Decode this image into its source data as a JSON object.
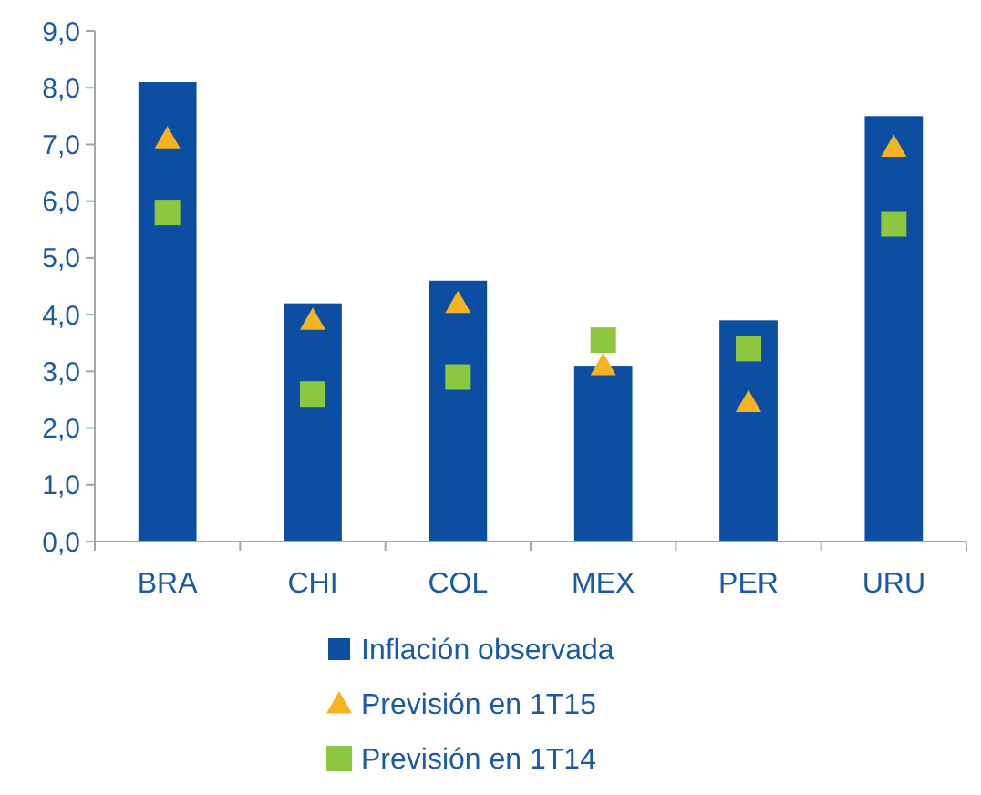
{
  "chart_data": {
    "type": "bar",
    "categories": [
      "BRA",
      "CHI",
      "COL",
      "MEX",
      "PER",
      "URU"
    ],
    "series": [
      {
        "name": "Inflación observada",
        "color": "#0b4ea2",
        "values": [
          8.1,
          4.2,
          4.6,
          3.1,
          3.9,
          7.5
        ]
      },
      {
        "name": "Previsión en 1T15",
        "type": "scatter",
        "marker": "triangle",
        "color": "#f5b324",
        "values": [
          7.1,
          3.9,
          4.2,
          3.1,
          2.45,
          6.95
        ]
      },
      {
        "name": "Previsión en 1T14",
        "type": "scatter",
        "marker": "square",
        "color": "#8dc63f",
        "values": [
          5.8,
          2.6,
          2.9,
          3.55,
          3.4,
          5.6
        ]
      }
    ],
    "ylim": [
      0,
      9
    ],
    "yticks": [
      {
        "value": 0,
        "label": "0,0"
      },
      {
        "value": 1,
        "label": "1,0"
      },
      {
        "value": 2,
        "label": "2,0"
      },
      {
        "value": 3,
        "label": "3,0"
      },
      {
        "value": 4,
        "label": "4,0"
      },
      {
        "value": 5,
        "label": "5,0"
      },
      {
        "value": 6,
        "label": "6,0"
      },
      {
        "value": 7,
        "label": "7,0"
      },
      {
        "value": 8,
        "label": "8,0"
      },
      {
        "value": 9,
        "label": "9,0"
      }
    ],
    "grid": false,
    "legend": "bottom"
  }
}
